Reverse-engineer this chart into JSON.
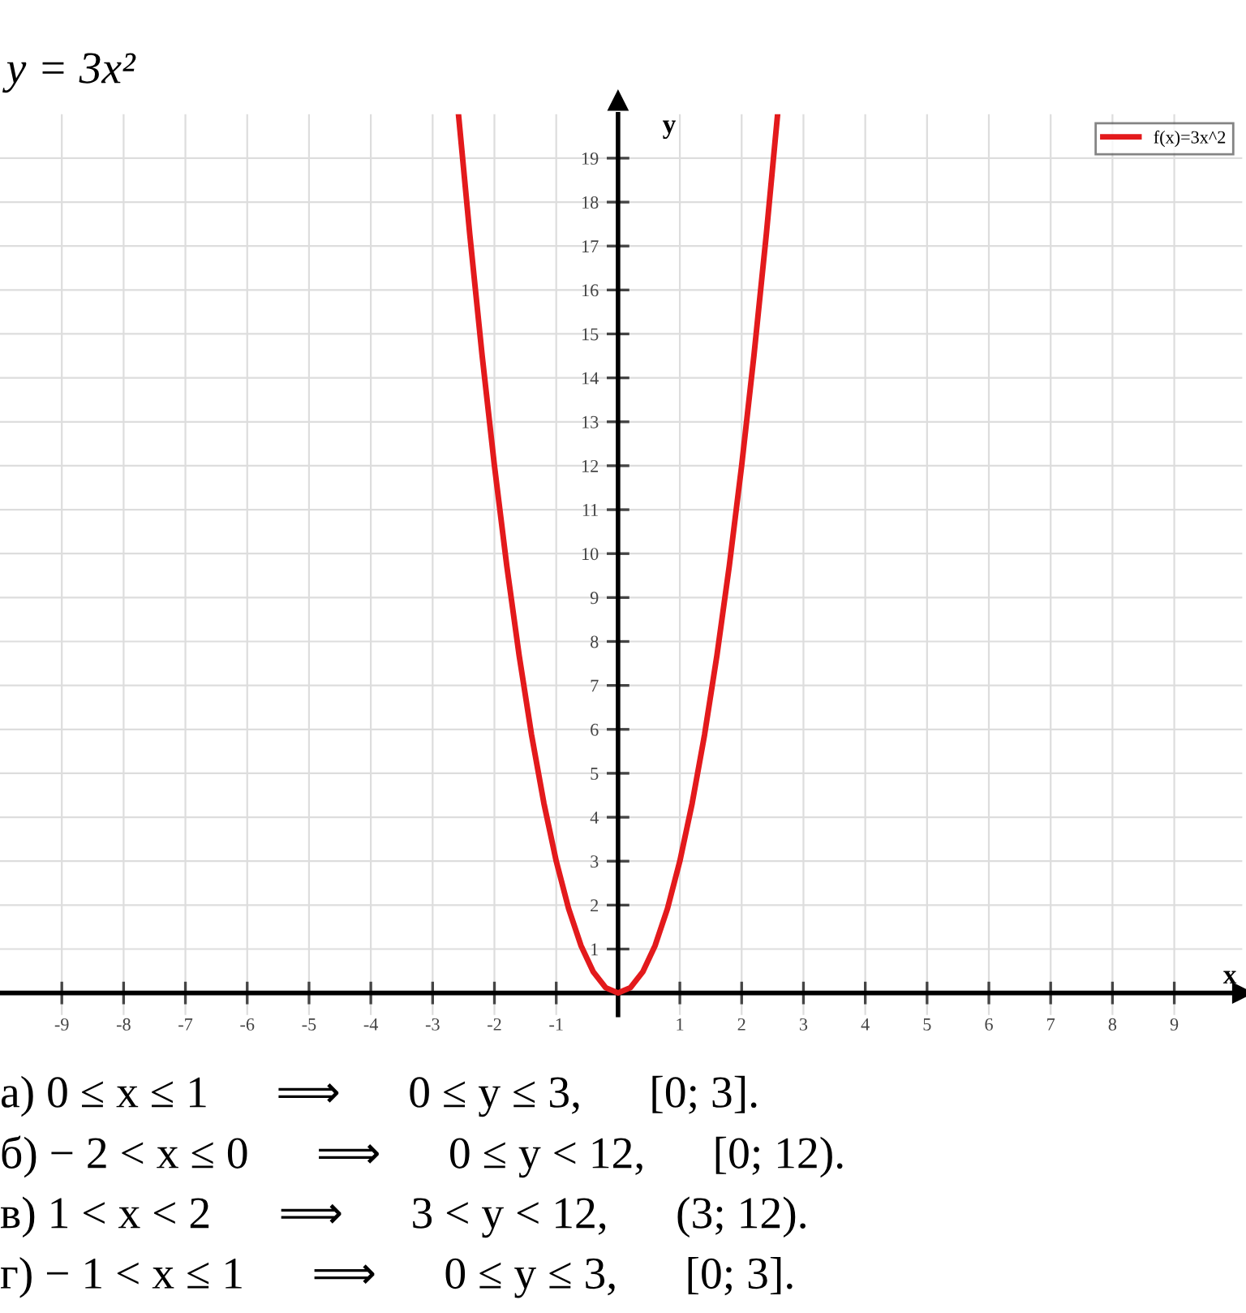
{
  "chart_data": {
    "type": "line",
    "title": "y = 3x²",
    "xlabel": "x",
    "ylabel": "y",
    "series": [
      {
        "name": "f(x)=3x^2",
        "color": "#e31a1c",
        "x": [
          -2.58,
          -2.4,
          -2.2,
          -2.0,
          -1.8,
          -1.6,
          -1.4,
          -1.2,
          -1.0,
          -0.8,
          -0.6,
          -0.4,
          -0.2,
          0,
          0.2,
          0.4,
          0.6,
          0.8,
          1.0,
          1.2,
          1.4,
          1.6,
          1.8,
          2.0,
          2.2,
          2.4,
          2.58
        ],
        "values": [
          19.97,
          17.28,
          14.52,
          12,
          9.72,
          7.68,
          5.88,
          4.32,
          3,
          1.92,
          1.08,
          0.48,
          0.12,
          0,
          0.12,
          0.48,
          1.08,
          1.92,
          3,
          4.32,
          5.88,
          7.68,
          9.72,
          12,
          14.52,
          17.28,
          19.97
        ]
      }
    ],
    "xlim": [
      -10,
      10.1
    ],
    "ylim": [
      -0.5,
      20
    ],
    "xticks": [
      -9,
      -8,
      -7,
      -6,
      -5,
      -4,
      -3,
      -2,
      -1,
      1,
      2,
      3,
      4,
      5,
      6,
      7,
      8,
      9
    ],
    "yticks": [
      1,
      2,
      3,
      4,
      5,
      6,
      7,
      8,
      9,
      10,
      11,
      12,
      13,
      14,
      15,
      16,
      17,
      18,
      19
    ],
    "grid": true,
    "legend": "top right",
    "marker": "none",
    "line_style": "solid",
    "annotations": [
      "а) 0 ≤ x ≤ 1      ⟹      0 ≤ y ≤ 3,      [0; 3].",
      "б) − 2 < x ≤ 0      ⟹      0 ≤ y < 12,      [0; 12).",
      "в) 1 < x < 2      ⟹      3 < y < 12,      (3; 12).",
      "г) − 1 < x ≤ 1      ⟹      0 ≤ y ≤ 3,      [0; 3]."
    ]
  }
}
